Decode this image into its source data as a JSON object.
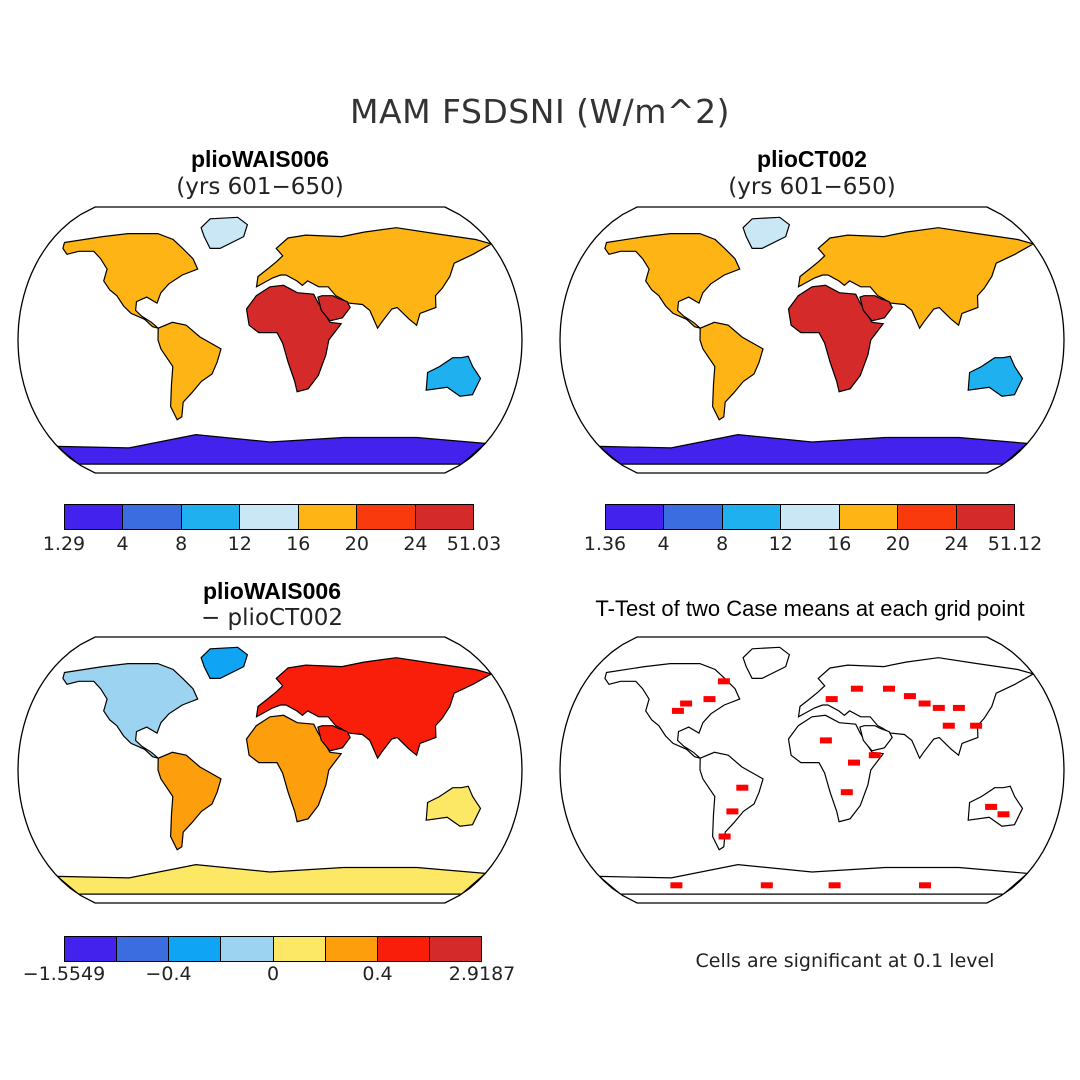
{
  "title": "MAM FSDSNI (W/m^2)",
  "panels": {
    "top_left": {
      "title": "plioWAIS006",
      "subtitle": "(yrs 601−650)"
    },
    "top_right": {
      "title": "plioCT002",
      "subtitle": "(yrs 601−650)"
    },
    "bottom_left": {
      "title": "plioWAIS006",
      "subtitle": "− plioCT002"
    },
    "bottom_right": {
      "title": "T-Test of two Case means at each grid point"
    }
  },
  "colorbars": {
    "top_left": {
      "colors": [
        "#4422ee",
        "#3b6de0",
        "#1fb0ef",
        "#c9e7f5",
        "#fdb414",
        "#f93a0d",
        "#d42a2a"
      ],
      "labels": [
        "1.29",
        "4",
        "8",
        "12",
        "16",
        "20",
        "24",
        "51.03"
      ]
    },
    "top_right": {
      "colors": [
        "#4422ee",
        "#3b6de0",
        "#1fb0ef",
        "#c9e7f5",
        "#fdb414",
        "#f93a0d",
        "#d42a2a"
      ],
      "labels": [
        "1.36",
        "4",
        "8",
        "12",
        "16",
        "20",
        "24",
        "51.12"
      ]
    },
    "bottom_left": {
      "colors": [
        "#4422ee",
        "#3b6de0",
        "#10a4f4",
        "#9bd3f0",
        "#fde866",
        "#fd9e0d",
        "#f81e0a",
        "#d42a2a"
      ],
      "labels": [
        "−1.5549",
        "−0.4",
        "0",
        "0.4",
        "2.9187"
      ],
      "label_slots": [
        0,
        2,
        4,
        6,
        8
      ]
    }
  },
  "significance_note": "Cells are significant at 0.1 level",
  "significance_color": "#ff0000",
  "land_outline_color": "#000000"
}
